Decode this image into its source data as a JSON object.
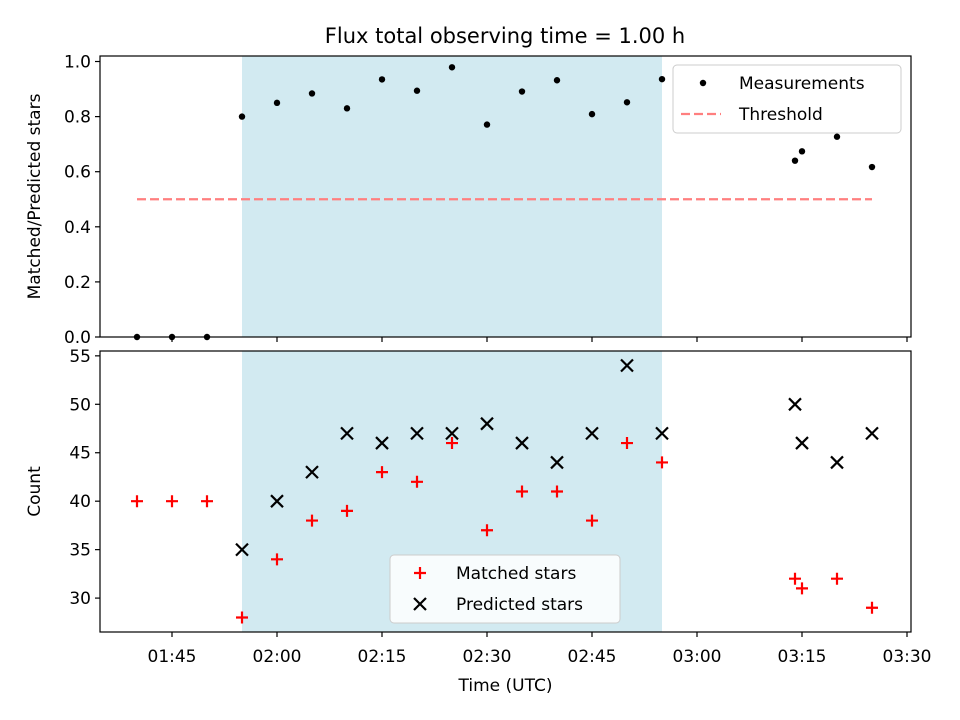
{
  "chart_data": [
    {
      "type": "scatter",
      "title": "Flux total observing time = 1.00 h",
      "ylabel": "Matched/Predicted stars",
      "xlabel": "",
      "ylim": [
        0,
        1.02
      ],
      "yticks": [
        "0.0",
        "0.2",
        "0.4",
        "0.6",
        "0.8",
        "1.0"
      ],
      "shaded_span": {
        "from": "01:55",
        "to": "02:55",
        "color": "#add8e6"
      },
      "legend": {
        "placement": "top-right",
        "items": [
          "Measurements",
          "Threshold"
        ]
      },
      "series": [
        {
          "name": "Measurements",
          "marker": "dot",
          "color": "#000000",
          "points": [
            [
              "01:40",
              0.0
            ],
            [
              "01:45",
              0.0
            ],
            [
              "01:50",
              0.0
            ],
            [
              "01:55",
              0.8
            ],
            [
              "02:00",
              0.85
            ],
            [
              "02:05",
              0.884
            ],
            [
              "02:10",
              0.83
            ],
            [
              "02:15",
              0.935
            ],
            [
              "02:20",
              0.894
            ],
            [
              "02:25",
              0.979
            ],
            [
              "02:30",
              0.771
            ],
            [
              "02:35",
              0.891
            ],
            [
              "02:40",
              0.932
            ],
            [
              "02:45",
              0.809
            ],
            [
              "02:50",
              0.852
            ],
            [
              "02:55",
              0.936
            ],
            [
              "03:14",
              0.64
            ],
            [
              "03:15",
              0.674
            ],
            [
              "03:20",
              0.727
            ],
            [
              "03:25",
              0.617
            ]
          ]
        },
        {
          "name": "Threshold",
          "marker": "dashed-line",
          "color": "#ff7f7f",
          "points": [
            [
              "01:40",
              0.5
            ],
            [
              "03:25",
              0.5
            ]
          ]
        }
      ]
    },
    {
      "type": "scatter",
      "title": "",
      "ylabel": "Count",
      "xlabel": "Time (UTC)",
      "ylim": [
        26.5,
        55.5
      ],
      "yticks": [
        "30",
        "35",
        "40",
        "45",
        "50",
        "55"
      ],
      "xlim": [
        "01:35",
        "03:30"
      ],
      "xticks": [
        "01:45",
        "02:00",
        "02:15",
        "02:30",
        "02:45",
        "03:00",
        "03:15",
        "03:30"
      ],
      "shaded_span": {
        "from": "01:55",
        "to": "02:55",
        "color": "#add8e6"
      },
      "legend": {
        "placement": "bottom-center",
        "items": [
          "Matched stars",
          "Predicted stars"
        ]
      },
      "series": [
        {
          "name": "Matched stars",
          "marker": "plus",
          "color": "#ff0000",
          "points": [
            [
              "01:40",
              40
            ],
            [
              "01:45",
              40
            ],
            [
              "01:50",
              40
            ],
            [
              "01:55",
              28
            ],
            [
              "02:00",
              34
            ],
            [
              "02:05",
              38
            ],
            [
              "02:10",
              39
            ],
            [
              "02:15",
              43
            ],
            [
              "02:20",
              42
            ],
            [
              "02:25",
              46
            ],
            [
              "02:30",
              37
            ],
            [
              "02:35",
              41
            ],
            [
              "02:40",
              41
            ],
            [
              "02:45",
              38
            ],
            [
              "02:50",
              46
            ],
            [
              "02:55",
              44
            ],
            [
              "03:14",
              32
            ],
            [
              "03:15",
              31
            ],
            [
              "03:20",
              32
            ],
            [
              "03:25",
              29
            ]
          ]
        },
        {
          "name": "Predicted stars",
          "marker": "x",
          "color": "#000000",
          "points": [
            [
              "01:55",
              35
            ],
            [
              "02:00",
              40
            ],
            [
              "02:05",
              43
            ],
            [
              "02:10",
              47
            ],
            [
              "02:15",
              46
            ],
            [
              "02:20",
              47
            ],
            [
              "02:25",
              47
            ],
            [
              "02:30",
              48
            ],
            [
              "02:35",
              46
            ],
            [
              "02:40",
              44
            ],
            [
              "02:45",
              47
            ],
            [
              "02:50",
              54
            ],
            [
              "02:55",
              47
            ],
            [
              "03:14",
              50
            ],
            [
              "03:15",
              46
            ],
            [
              "03:20",
              44
            ],
            [
              "03:25",
              47
            ]
          ]
        }
      ]
    }
  ]
}
